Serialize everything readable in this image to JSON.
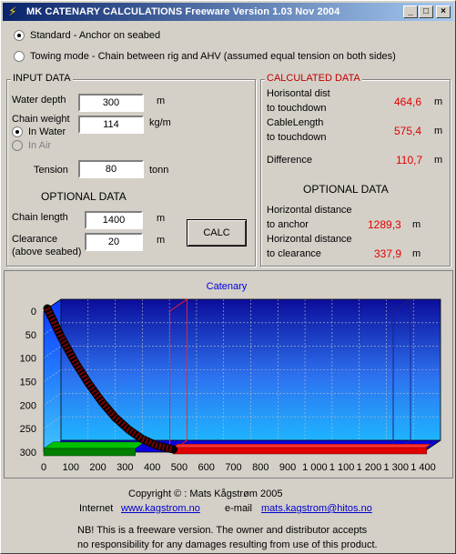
{
  "title": "MK CATENARY CALCULATIONS   Freeware Version 1.03 Nov 2004",
  "window_buttons": {
    "minimize": "_",
    "maximize": "□",
    "close": "×"
  },
  "modes": [
    {
      "label": "Standard - Anchor on seabed",
      "selected": true
    },
    {
      "label": "Towing mode - Chain between rig and AHV (assumed equal tension on both sides)",
      "selected": false
    }
  ],
  "input": {
    "title": "INPUT DATA",
    "water_depth_label": "Water depth",
    "water_depth_value": "300",
    "water_depth_unit": "m",
    "chain_weight_label": "Chain weight",
    "chain_weight_value": "114",
    "chain_weight_unit": "kg/m",
    "in_water_label": "In Water",
    "in_air_label": "In Air",
    "tension_label": "Tension",
    "tension_value": "80",
    "tension_unit": "tonn",
    "optional_title": "OPTIONAL DATA",
    "chain_length_label": "Chain length",
    "chain_length_value": "1400",
    "chain_length_unit": "m",
    "clearance_label": "Clearance",
    "clearance_sub": "(above seabed)",
    "clearance_value": "20",
    "clearance_unit": "m"
  },
  "calc_button": "CALC",
  "calculated": {
    "title": "CALCULATED DATA",
    "hdist_l1": "Horisontal dist",
    "hdist_l2": "to touchdown",
    "hdist_value": "464,6",
    "hdist_unit": "m",
    "cable_l1": "CableLength",
    "cable_l2": "to touchdown",
    "cable_value": "575,4",
    "cable_unit": "m",
    "diff_label": "Difference",
    "diff_value": "110,7",
    "diff_unit": "m",
    "optional_title": "OPTIONAL DATA",
    "hanchor_l1": "Horizontal distance",
    "hanchor_l2": "to anchor",
    "hanchor_value": "1289,3",
    "hanchor_unit": "m",
    "hclear_l1": "Horizontal distance",
    "hclear_l2": "to clearance",
    "hclear_value": "337,9",
    "hclear_unit": "m"
  },
  "chart_data": {
    "type": "line",
    "title": "Catenary",
    "xlim": [
      0,
      1400
    ],
    "ylim": [
      0,
      300
    ],
    "y_inverted": true,
    "x_ticks": [
      "0",
      "100",
      "200",
      "300",
      "400",
      "500",
      "600",
      "700",
      "800",
      "900",
      "1 000",
      "1 100",
      "1 200",
      "1 300",
      "1 400"
    ],
    "y_ticks": [
      "0",
      "50",
      "100",
      "150",
      "200",
      "250",
      "300"
    ],
    "grid": true,
    "series": [
      {
        "points": [
          [
            0,
            0
          ],
          [
            50,
            60
          ],
          [
            100,
            112
          ],
          [
            150,
            158
          ],
          [
            200,
            198
          ],
          [
            250,
            232
          ],
          [
            300,
            258
          ],
          [
            350,
            278
          ],
          [
            400,
            291
          ],
          [
            450,
            298
          ],
          [
            465,
            300
          ]
        ],
        "color": "#7a0000"
      },
      {
        "points": [
          [
            465,
            300
          ],
          [
            1400,
            300
          ]
        ],
        "color": "#ff0000"
      },
      {
        "points": [
          [
            0,
            300
          ],
          [
            338,
            300
          ]
        ],
        "color": "#008000"
      }
    ],
    "markers_x": [
      465,
      1289.3
    ]
  },
  "footer": {
    "copyright": "Copyright  ©  : Mats Kågstrøm 2005",
    "internet_label": "Internet",
    "internet_link": "www.kagstrom.no",
    "email_label": "e-mail",
    "email_link": "mats.kagstrom@hitos.no",
    "note1": "NB! This is a freeware version. The owner and distributor accepts",
    "note2": "no responsibility for any damages resulting from use of this product."
  }
}
